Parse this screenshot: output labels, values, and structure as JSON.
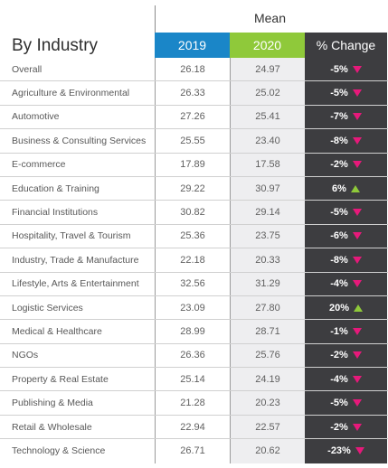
{
  "chart_data": {
    "type": "table",
    "title": "By Industry",
    "group_header": "Mean",
    "columns": [
      "2019",
      "2020",
      "% Change"
    ],
    "colors": {
      "2019": "#1a86c8",
      "2020": "#8fc93a",
      "change_bg": "#3d3d40",
      "down": "#e6197a",
      "up": "#8fc93a"
    },
    "rows": [
      {
        "industry": "Overall",
        "y2019": "26.18",
        "y2020": "24.97",
        "change": "-5%",
        "direction": "down"
      },
      {
        "industry": "Agriculture & Environmental",
        "y2019": "26.33",
        "y2020": "25.02",
        "change": "-5%",
        "direction": "down"
      },
      {
        "industry": "Automotive",
        "y2019": "27.26",
        "y2020": "25.41",
        "change": "-7%",
        "direction": "down"
      },
      {
        "industry": "Business & Consulting Services",
        "y2019": "25.55",
        "y2020": "23.40",
        "change": "-8%",
        "direction": "down"
      },
      {
        "industry": "E-commerce",
        "y2019": "17.89",
        "y2020": "17.58",
        "change": "-2%",
        "direction": "down"
      },
      {
        "industry": "Education & Training",
        "y2019": "29.22",
        "y2020": "30.97",
        "change": "6%",
        "direction": "up"
      },
      {
        "industry": "Financial Institutions",
        "y2019": "30.82",
        "y2020": "29.14",
        "change": "-5%",
        "direction": "down"
      },
      {
        "industry": "Hospitality, Travel & Tourism",
        "y2019": "25.36",
        "y2020": "23.75",
        "change": "-6%",
        "direction": "down"
      },
      {
        "industry": "Industry, Trade & Manufacture",
        "y2019": "22.18",
        "y2020": "20.33",
        "change": "-8%",
        "direction": "down"
      },
      {
        "industry": "Lifestyle, Arts & Entertainment",
        "y2019": "32.56",
        "y2020": "31.29",
        "change": "-4%",
        "direction": "down"
      },
      {
        "industry": "Logistic Services",
        "y2019": "23.09",
        "y2020": "27.80",
        "change": "20%",
        "direction": "up"
      },
      {
        "industry": "Medical & Healthcare",
        "y2019": "28.99",
        "y2020": "28.71",
        "change": "-1%",
        "direction": "down"
      },
      {
        "industry": "NGOs",
        "y2019": "26.36",
        "y2020": "25.76",
        "change": "-2%",
        "direction": "down"
      },
      {
        "industry": "Property & Real Estate",
        "y2019": "25.14",
        "y2020": "24.19",
        "change": "-4%",
        "direction": "down"
      },
      {
        "industry": "Publishing & Media",
        "y2019": "21.28",
        "y2020": "20.23",
        "change": "-5%",
        "direction": "down"
      },
      {
        "industry": "Retail & Wholesale",
        "y2019": "22.94",
        "y2020": "22.57",
        "change": "-2%",
        "direction": "down"
      },
      {
        "industry": "Technology & Science",
        "y2019": "26.71",
        "y2020": "20.62",
        "change": "-23%",
        "direction": "down"
      }
    ]
  }
}
